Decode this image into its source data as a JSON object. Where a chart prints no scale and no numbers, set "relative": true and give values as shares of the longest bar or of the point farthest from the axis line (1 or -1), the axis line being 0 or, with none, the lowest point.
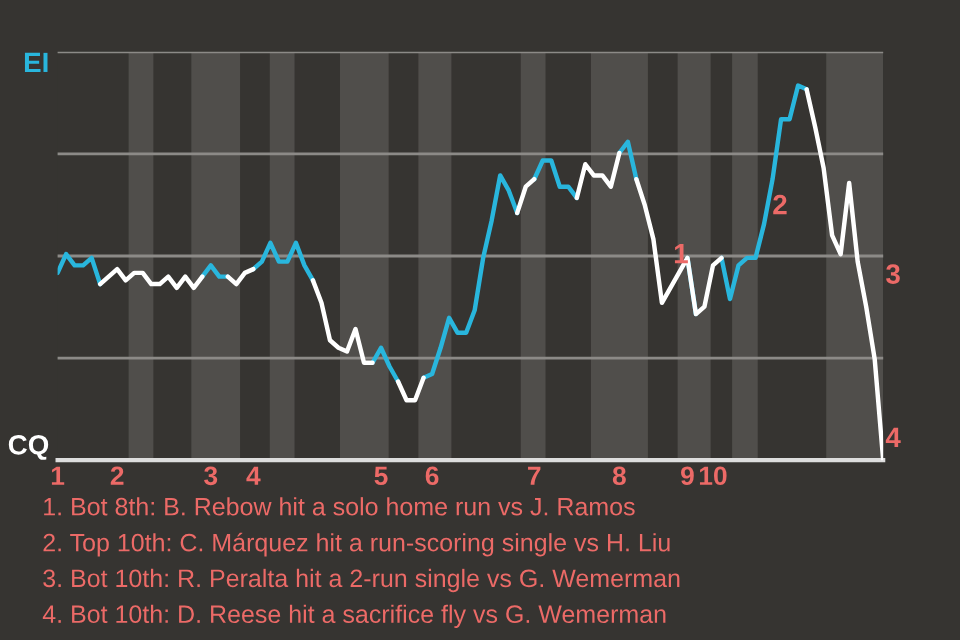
{
  "chart_data": {
    "type": "line",
    "relative": true,
    "categories": [
      "1",
      null,
      null,
      null,
      null,
      null,
      null,
      "2",
      null,
      null,
      null,
      null,
      null,
      null,
      null,
      null,
      null,
      null,
      "3",
      null,
      null,
      null,
      null,
      "4",
      null,
      null,
      null,
      null,
      null,
      null,
      null,
      null,
      null,
      null,
      null,
      null,
      null,
      null,
      "5",
      null,
      null,
      null,
      null,
      null,
      "6",
      null,
      null,
      null,
      null,
      null,
      null,
      null,
      null,
      null,
      null,
      null,
      "7",
      null,
      null,
      null,
      null,
      null,
      null,
      null,
      null,
      null,
      "8",
      null,
      null,
      null,
      null,
      null,
      null,
      null,
      "9",
      null,
      null,
      "10",
      null,
      null,
      null,
      null,
      null,
      null,
      null,
      null,
      null,
      null,
      null,
      null,
      null,
      null,
      null,
      null,
      null,
      null,
      null,
      null
    ],
    "series": [
      {
        "color": "#29b6dd",
        "values": [
          0.5,
          0.55,
          0.52,
          0.52,
          0.54,
          0.47,
          null,
          null,
          null,
          null,
          null,
          null,
          null,
          null,
          null,
          null,
          null,
          0.49,
          0.52,
          0.49,
          0.49,
          null,
          null,
          0.51,
          0.53,
          0.58,
          0.53,
          0.53,
          0.58,
          0.52,
          0.48,
          null,
          null,
          null,
          null,
          null,
          null,
          0.26,
          0.3,
          0.25,
          0.21,
          null,
          null,
          0.22,
          0.23,
          0.3,
          0.38,
          0.34,
          0.34,
          0.4,
          0.54,
          0.64,
          0.76,
          0.72,
          0.66,
          null,
          0.75,
          0.8,
          0.8,
          0.73,
          0.73,
          0.7,
          null,
          null,
          null,
          null,
          0.82,
          0.85,
          0.75,
          null,
          null,
          null,
          null,
          null,
          0.54,
          0.39,
          null,
          null,
          0.54,
          0.43,
          0.52,
          0.54,
          0.54,
          0.63,
          0.75,
          0.91,
          0.91,
          1,
          0.99,
          null,
          null,
          null,
          null,
          null,
          null,
          null,
          null,
          null
        ]
      },
      {
        "color": "#ffffff",
        "values": [
          null,
          null,
          null,
          null,
          null,
          0.47,
          0.49,
          0.51,
          0.48,
          0.5,
          0.5,
          0.47,
          0.47,
          0.49,
          0.46,
          0.49,
          0.46,
          0.49,
          null,
          null,
          0.49,
          0.47,
          0.5,
          0.51,
          null,
          null,
          null,
          null,
          null,
          null,
          0.48,
          0.42,
          0.32,
          0.3,
          0.29,
          0.35,
          0.26,
          0.26,
          null,
          null,
          0.21,
          0.16,
          0.16,
          0.22,
          null,
          null,
          null,
          null,
          null,
          null,
          null,
          null,
          null,
          null,
          0.66,
          0.73,
          0.75,
          null,
          null,
          null,
          null,
          0.7,
          0.79,
          0.76,
          0.76,
          0.73,
          0.82,
          null,
          0.75,
          0.68,
          0.59,
          0.42,
          0.46,
          0.5,
          0.54,
          0.39,
          0.41,
          0.52,
          0.54,
          null,
          null,
          null,
          null,
          null,
          null,
          null,
          null,
          null,
          0.99,
          0.89,
          0.78,
          0.6,
          0.55,
          0.74,
          0.53,
          0.41,
          0.27,
          0
        ]
      }
    ],
    "grid": "y",
    "marker": "none",
    "line_style": "solid",
    "annotations": [
      "EI",
      "CQ",
      "1",
      "2",
      "3",
      "4",
      "1. Bot 8th: B. Rebow hit a solo home run vs J. Ramos",
      "2. Top 10th: C. Márquez hit a run-scoring single vs H. Liu",
      "3. Bot 10th: R. Peralta hit a 2-run single vs G. Wemerman",
      "4. Bot 10th: D. Reese hit a sacrifice fly vs G. Wemerman"
    ]
  }
}
